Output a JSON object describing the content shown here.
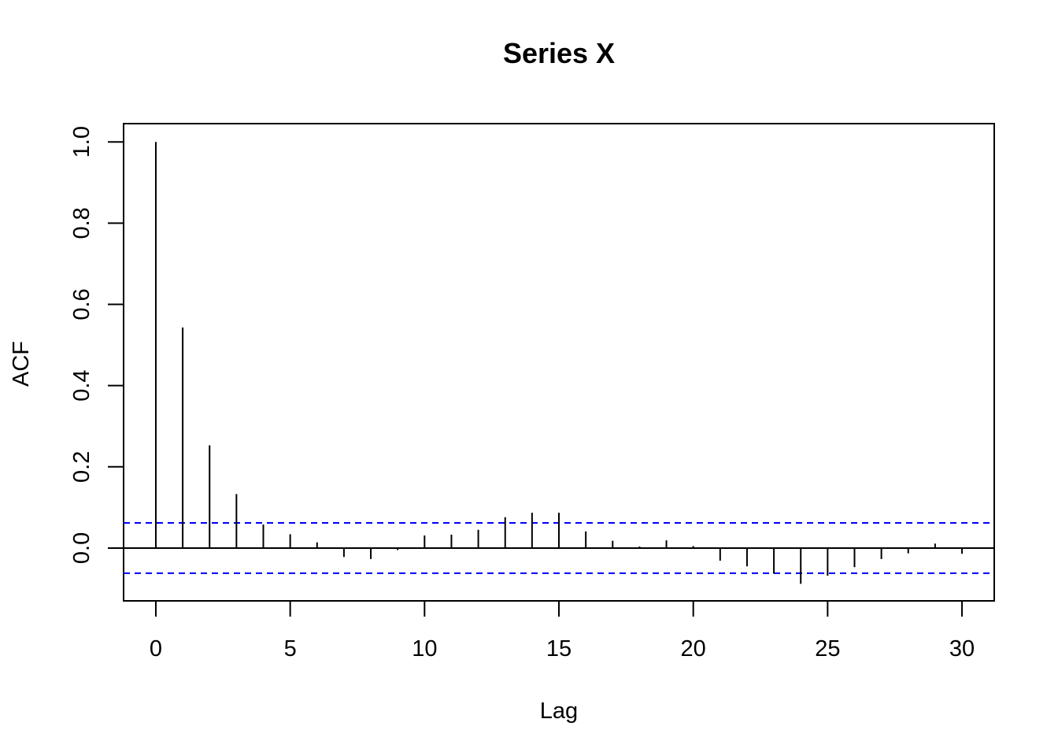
{
  "chart_data": {
    "type": "bar",
    "title": "Series  X",
    "xlabel": "Lag",
    "ylabel": "ACF",
    "xlim": [
      -1.2,
      31.2
    ],
    "ylim": [
      -0.13,
      1.045
    ],
    "x_ticks": [
      0,
      5,
      10,
      15,
      20,
      25,
      30
    ],
    "x_tick_labels": [
      "0",
      "5",
      "10",
      "15",
      "20",
      "25",
      "30"
    ],
    "y_ticks": [
      0.0,
      0.2,
      0.4,
      0.6,
      0.8,
      1.0
    ],
    "y_tick_labels": [
      "0.0",
      "0.2",
      "0.4",
      "0.6",
      "0.8",
      "1.0"
    ],
    "lags": [
      0,
      1,
      2,
      3,
      4,
      5,
      6,
      7,
      8,
      9,
      10,
      11,
      12,
      13,
      14,
      15,
      16,
      17,
      18,
      19,
      20,
      21,
      22,
      23,
      24,
      25,
      26,
      27,
      28,
      29,
      30
    ],
    "values": [
      1.0,
      0.543,
      0.253,
      0.133,
      0.058,
      0.034,
      0.014,
      -0.022,
      -0.027,
      -0.005,
      0.031,
      0.033,
      0.045,
      0.076,
      0.087,
      0.087,
      0.041,
      0.018,
      0.004,
      0.019,
      0.005,
      -0.031,
      -0.045,
      -0.063,
      -0.088,
      -0.068,
      -0.047,
      -0.027,
      -0.013,
      0.011,
      -0.014
    ],
    "confidence_band": 0.062,
    "confidence_color": "#0000ff",
    "grid": false,
    "legend": "none"
  }
}
